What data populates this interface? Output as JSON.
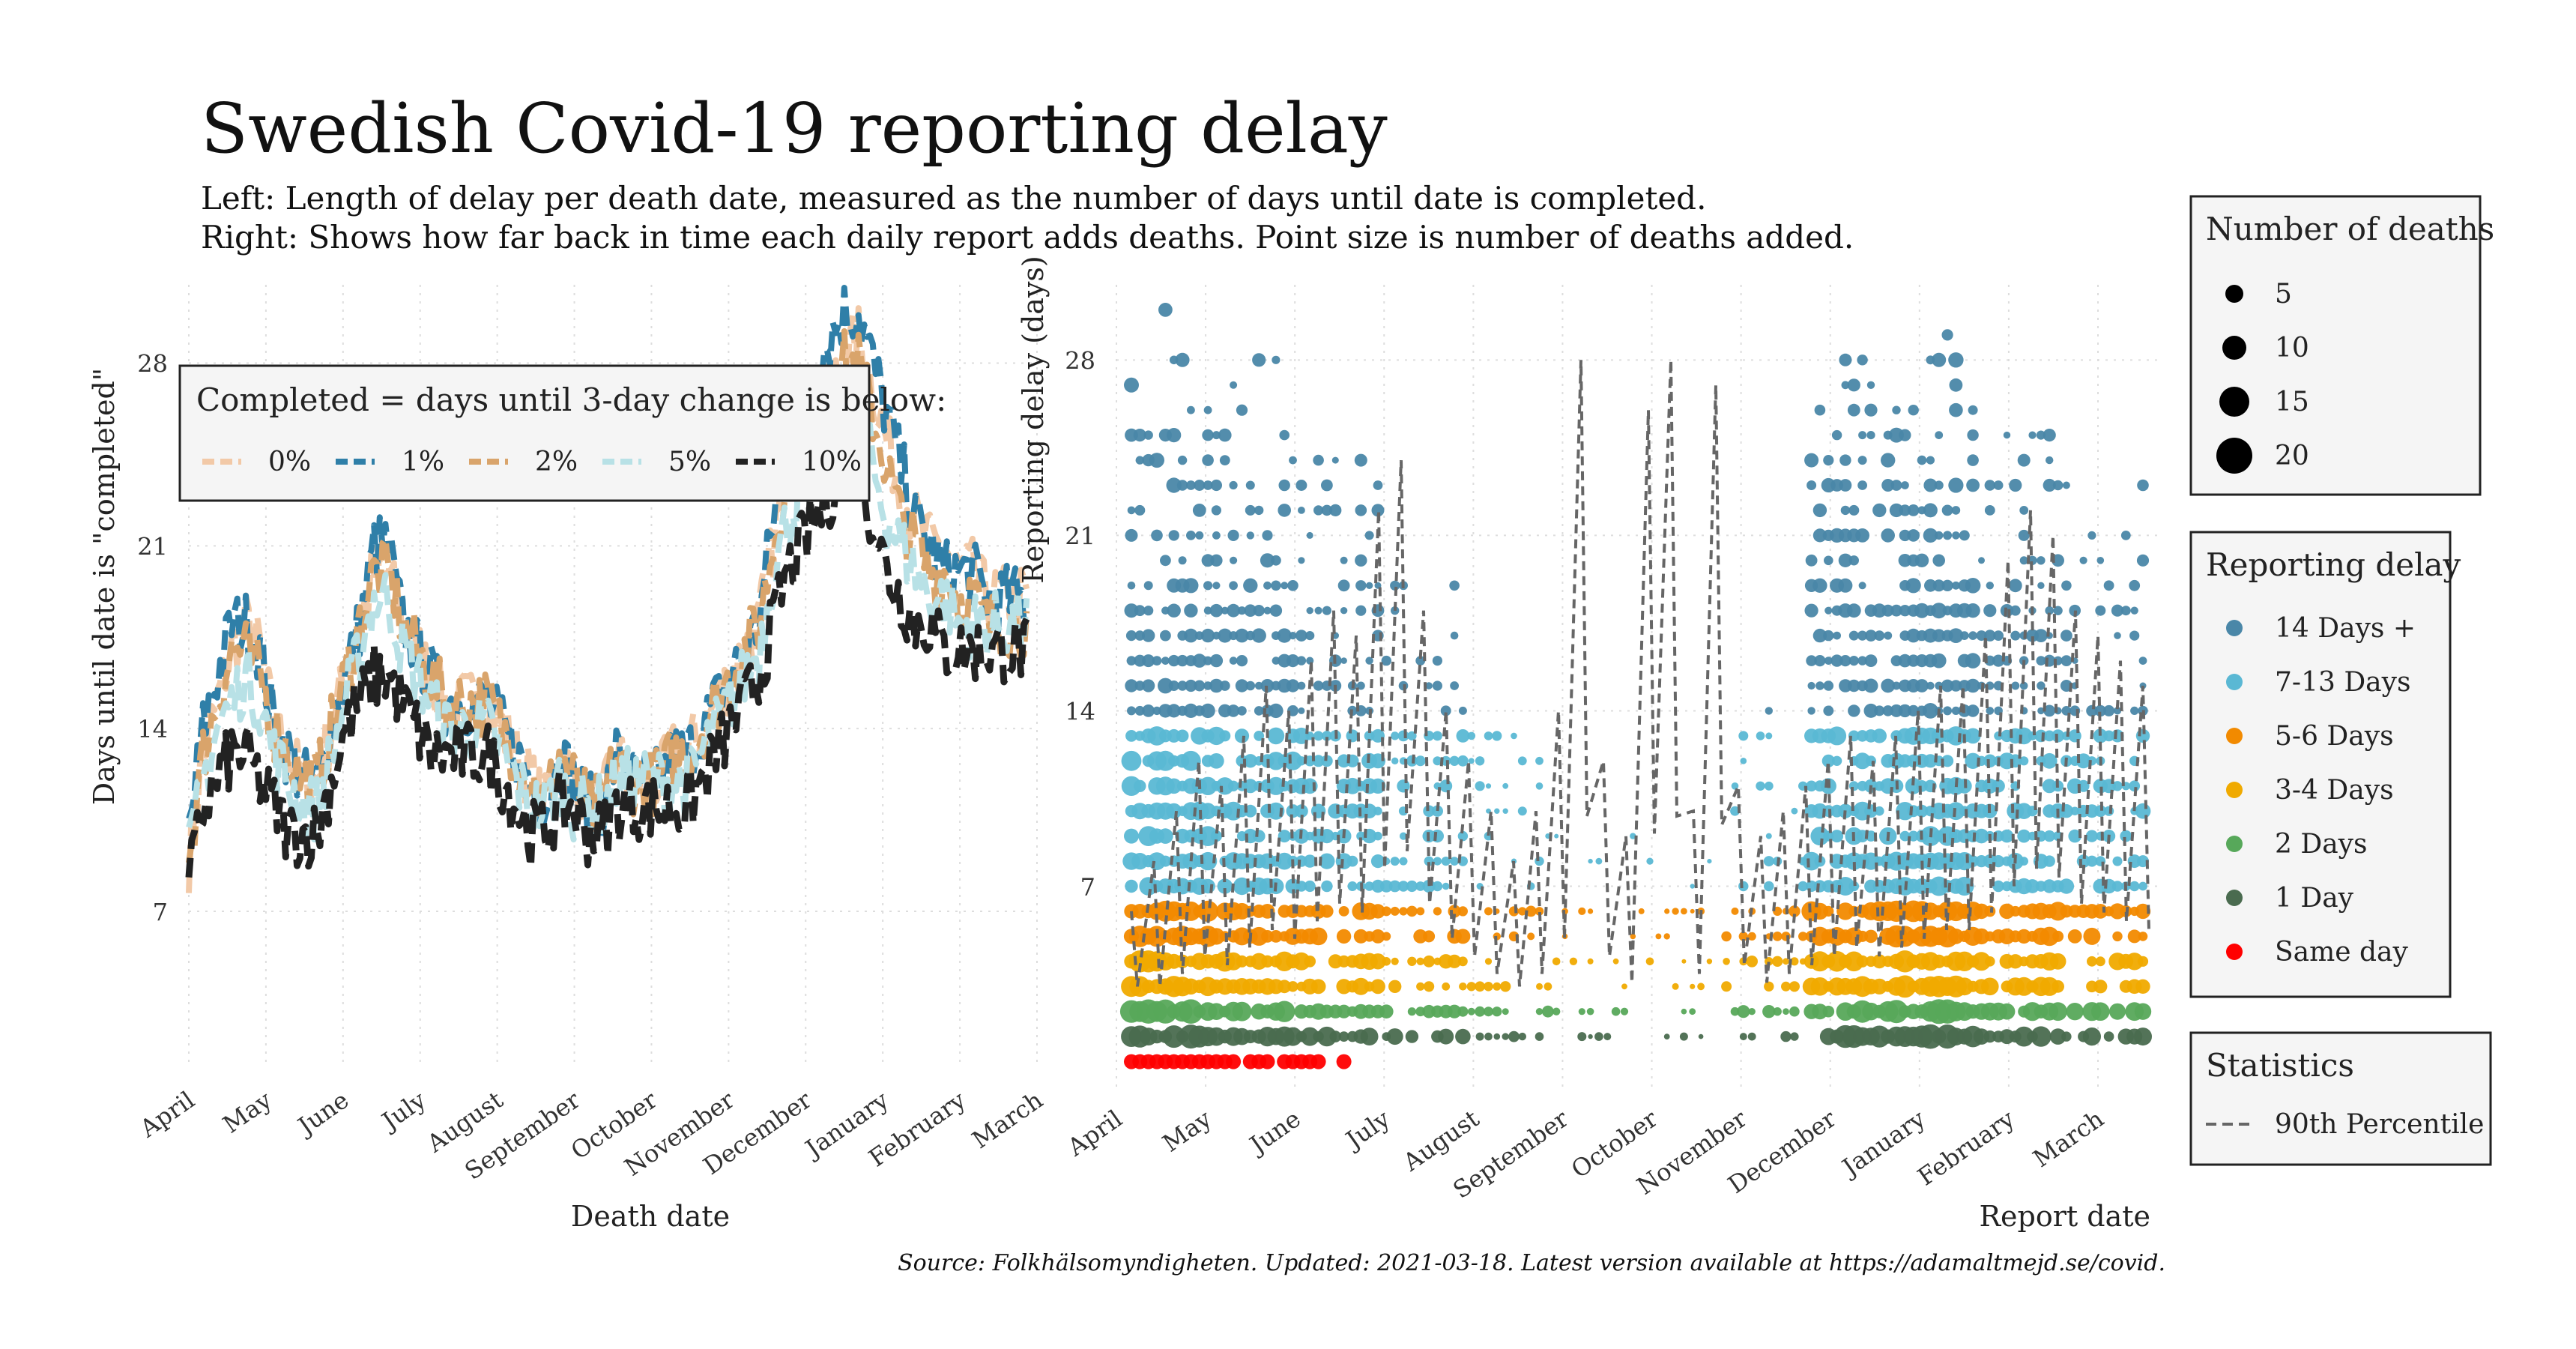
{
  "title": "Swedish Covid-19 reporting delay",
  "subtitle_1": "Left: Length of delay per death date, measured as the number of days until date is completed.",
  "subtitle_2": "Right: Shows how far back in time each daily report adds deaths. Point size is number of deaths added.",
  "source": "Source: Folkhälsomyndigheten. Updated: 2021-03-18. Latest version available at https://adamaltmejd.se/covid.",
  "colors": {
    "pct0": "#f2c9a7",
    "pct1": "#2f7fa8",
    "pct2": "#d9a46b",
    "pct5": "#b8e1e6",
    "pct10": "#222222",
    "d14": "#4a87a8",
    "d7": "#5ab8d4",
    "d5": "#f28a00",
    "d3": "#f0aa00",
    "d2": "#57a85a",
    "d1": "#4a6b4f",
    "d0": "#ff0000",
    "p90": "#666666"
  },
  "chart_data": [
    {
      "type": "line",
      "xlabel": "Death date",
      "ylabel": "Days until date is \"completed\"",
      "x_ticks": [
        "April",
        "May",
        "June",
        "July",
        "August",
        "September",
        "October",
        "November",
        "December",
        "January",
        "February",
        "March"
      ],
      "y_ticks": [
        7,
        14,
        21,
        28
      ],
      "ylim": [
        1,
        31
      ],
      "x_range": [
        "2020-04-01",
        "2021-03-04"
      ],
      "legend": {
        "title": "Completed = days until 3-day change is below:",
        "placement": "inside-top-left",
        "entries": [
          "0%",
          "1%",
          "2%",
          "5%",
          "10%"
        ]
      },
      "series": [
        {
          "name": "0%",
          "color_key": "pct0",
          "style": "dashed",
          "values": [
            9,
            13,
            15,
            17,
            18,
            17,
            14,
            13,
            12,
            12,
            14,
            16,
            18,
            20,
            20,
            18,
            17,
            16,
            15,
            15,
            15,
            15,
            14,
            13,
            12,
            11,
            13,
            12,
            11,
            11,
            13,
            12,
            12,
            12,
            13,
            13,
            14,
            15,
            16,
            17,
            18,
            21,
            24,
            25,
            26,
            27,
            28,
            29,
            27,
            25,
            23,
            22,
            21,
            21,
            20,
            20,
            19,
            19,
            19,
            19
          ]
        },
        {
          "name": "1%",
          "color_key": "pct1",
          "style": "dashed",
          "values": [
            10,
            14,
            16,
            18,
            18,
            17,
            14,
            13,
            12,
            12,
            14,
            16,
            18,
            21,
            21,
            18,
            17,
            16,
            15,
            15,
            15,
            15,
            14,
            13,
            12,
            11,
            13,
            12,
            11,
            11,
            13,
            12,
            12,
            12,
            13,
            13,
            14,
            15,
            16,
            17,
            18,
            22,
            25,
            26,
            28,
            29,
            30,
            30,
            28,
            26,
            24,
            22,
            21,
            20,
            20,
            20,
            19,
            19,
            19,
            19
          ]
        },
        {
          "name": "2%",
          "color_key": "pct2",
          "style": "dashed",
          "values": [
            9,
            13,
            15,
            17,
            17,
            16,
            14,
            13,
            12,
            12,
            14,
            16,
            18,
            20,
            20,
            18,
            17,
            16,
            15,
            15,
            15,
            15,
            14,
            13,
            12,
            11,
            13,
            12,
            11,
            11,
            13,
            12,
            12,
            12,
            13,
            13,
            14,
            15,
            16,
            17,
            18,
            21,
            24,
            25,
            26,
            27,
            28,
            28,
            26,
            24,
            22,
            21,
            20,
            20,
            19,
            19,
            18,
            18,
            18,
            18
          ]
        },
        {
          "name": "5%",
          "color_key": "pct5",
          "style": "dashed",
          "values": [
            9,
            12,
            14,
            15,
            16,
            15,
            13,
            12,
            11,
            11,
            13,
            15,
            17,
            19,
            19,
            17,
            16,
            15,
            14,
            14,
            14,
            14,
            13,
            12,
            11,
            11,
            12,
            11,
            11,
            11,
            12,
            12,
            12,
            12,
            12,
            12,
            13,
            14,
            15,
            16,
            17,
            20,
            22,
            23,
            24,
            25,
            26,
            26,
            24,
            22,
            21,
            20,
            19,
            19,
            18,
            18,
            18,
            18,
            18,
            18
          ]
        },
        {
          "name": "10%",
          "color_key": "pct10",
          "style": "dashed",
          "values": [
            8,
            11,
            12,
            13,
            13,
            12,
            11,
            10,
            10,
            10,
            12,
            14,
            15,
            16,
            16,
            15,
            14,
            13,
            13,
            13,
            13,
            13,
            12,
            11,
            10,
            10,
            11,
            11,
            10,
            10,
            11,
            11,
            11,
            11,
            11,
            11,
            12,
            13,
            14,
            15,
            16,
            18,
            20,
            21,
            22,
            23,
            24,
            24,
            22,
            20,
            19,
            18,
            18,
            17,
            17,
            17,
            17,
            17,
            17,
            17
          ]
        }
      ]
    },
    {
      "type": "scatter",
      "xlabel": "Report date",
      "ylabel": "Reporting delay (days)",
      "x_ticks": [
        "April",
        "May",
        "June",
        "July",
        "August",
        "September",
        "October",
        "November",
        "December",
        "January",
        "February",
        "March"
      ],
      "y_ticks": [
        7,
        14,
        21,
        28
      ],
      "ylim": [
        -1,
        31
      ],
      "legend_size": {
        "title": "Number of deaths",
        "entries": [
          5,
          10,
          15,
          20
        ]
      },
      "legend_color": {
        "title": "Reporting delay",
        "entries": [
          {
            "label": "14 Days +",
            "color_key": "d14"
          },
          {
            "label": "7-13 Days",
            "color_key": "d7"
          },
          {
            "label": "5-6 Days",
            "color_key": "d5"
          },
          {
            "label": "3-4 Days",
            "color_key": "d3"
          },
          {
            "label": "2 Days",
            "color_key": "d2"
          },
          {
            "label": "1 Day",
            "color_key": "d1"
          },
          {
            "label": "Same day",
            "color_key": "d0"
          }
        ]
      },
      "legend_stats": {
        "title": "Statistics",
        "entries": [
          "90th Percentile"
        ]
      },
      "intensity_by_month": [
        1.0,
        0.9,
        0.75,
        0.55,
        0.3,
        0.12,
        0.1,
        0.35,
        0.9,
        1.0,
        0.8,
        0.7
      ],
      "p90_values": [
        6,
        8,
        10,
        12,
        11,
        13,
        15,
        14,
        16,
        18,
        17,
        22,
        24,
        18,
        14,
        12,
        10,
        8,
        10,
        14,
        28,
        12,
        9,
        26,
        28,
        10,
        27,
        11,
        9,
        10,
        11,
        12,
        13,
        12,
        13,
        14,
        15,
        15,
        17,
        20,
        22,
        21,
        18,
        17,
        16,
        15
      ]
    }
  ]
}
